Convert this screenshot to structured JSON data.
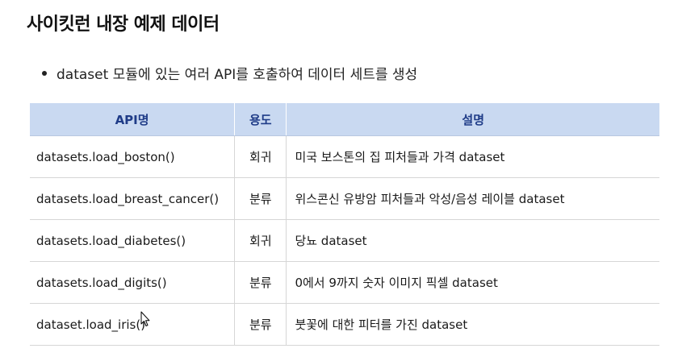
{
  "heading": "사이킷런 내장 예제 데이터",
  "bullet": "dataset 모듈에 있는 여러 API를 호출하여 데이터 세트를 생성",
  "table": {
    "headers": [
      "API명",
      "용도",
      "설명"
    ],
    "rows": [
      {
        "api": "datasets.load_boston()",
        "use": "회귀",
        "desc": "미국 보스톤의 집 피처들과 가격 dataset"
      },
      {
        "api": "datasets.load_breast_cancer()",
        "use": "분류",
        "desc": "위스콘신 유방암 피처들과 악성/음성 레이블 dataset"
      },
      {
        "api": "datasets.load_diabetes()",
        "use": "회귀",
        "desc": "당뇨 dataset"
      },
      {
        "api": "datasets.load_digits()",
        "use": "분류",
        "desc": "0에서 9까지 숫자 이미지 픽셀 dataset"
      },
      {
        "api": "dataset.load_iris()",
        "use": "분류",
        "desc": "붓꽃에 대한 피터를 가진 dataset"
      }
    ]
  },
  "colors": {
    "header_bg": "#c9d9f1",
    "header_text": "#1f3c88"
  },
  "icons": {
    "cursor": "mouse-pointer-icon"
  }
}
